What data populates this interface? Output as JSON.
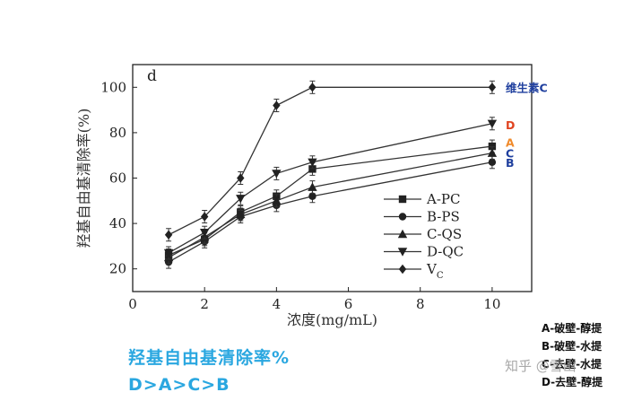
{
  "chart_data": {
    "type": "line",
    "panel_label": "d",
    "xlabel": "浓度(mg/mL)",
    "ylabel": "羟基自由基清除率(%)",
    "xlim": [
      0,
      11.1
    ],
    "ylim": [
      10,
      110
    ],
    "xticks": [
      0,
      2,
      4,
      6,
      8,
      10
    ],
    "yticks": [
      20,
      40,
      60,
      80,
      100
    ],
    "x": [
      1,
      2,
      3,
      4,
      5,
      10
    ],
    "legend_position": "lower-right",
    "series": [
      {
        "name": "A-PC",
        "marker": "square",
        "values": [
          26,
          33,
          45,
          52,
          64,
          74
        ]
      },
      {
        "name": "B-PS",
        "marker": "circle",
        "values": [
          23,
          32,
          43,
          48,
          52,
          67
        ]
      },
      {
        "name": "C-QS",
        "marker": "triangle-up",
        "values": [
          25,
          34,
          44,
          50,
          56,
          71
        ]
      },
      {
        "name": "D-QC",
        "marker": "triangle-down",
        "values": [
          27,
          36,
          51,
          62,
          67,
          84
        ]
      },
      {
        "name": "V_C",
        "legend_main": "V",
        "legend_sub": "C",
        "marker": "diamond",
        "values": [
          35,
          43,
          60,
          92,
          100,
          100
        ]
      }
    ],
    "end_labels": [
      {
        "text": "维生素C",
        "y": 100,
        "color": "#1f3f9e"
      },
      {
        "text": "D",
        "y": 84,
        "color": "#e0431f"
      },
      {
        "text": "A",
        "y": 75,
        "color": "#f08a2b"
      },
      {
        "text": "C",
        "y": 71,
        "color": "#1f3f9e"
      },
      {
        "text": "B",
        "y": 67,
        "color": "#1f3f9e"
      }
    ]
  },
  "caption": {
    "line1": "羟基自由基清除率%",
    "line2": "D>A>C>B",
    "color": "#2aa7e0"
  },
  "notes": [
    "A-破壁-醇提",
    "B-破壁-水提",
    "C-去壁-水提",
    "D-去壁-醇提"
  ],
  "watermark": "知乎 @雪山"
}
